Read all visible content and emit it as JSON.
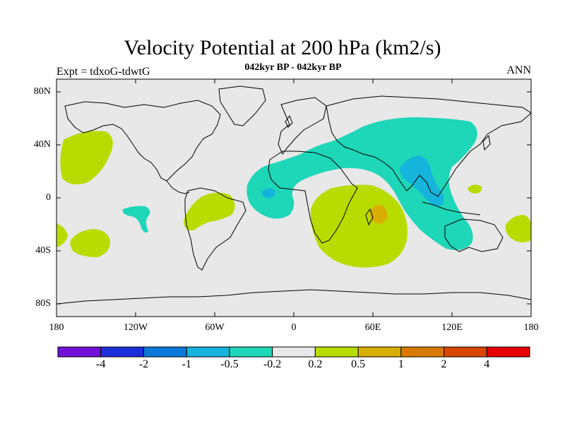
{
  "header": {
    "title": "Velocity Potential at 200 hPa (km2/s)",
    "subtitle": "042kyr BP - 042kyr BP",
    "left_label": "Expt = tdxoG-tdwtG",
    "right_label": "ANN"
  },
  "axes": {
    "lat_labels": [
      "80N",
      "40N",
      "0",
      "40S",
      "80S"
    ],
    "lon_labels": [
      "180",
      "120W",
      "60W",
      "0",
      "60E",
      "120E",
      "180"
    ]
  },
  "colorbar": {
    "colors": [
      "#7010d8",
      "#1e2ed8",
      "#0a78d8",
      "#14b4dc",
      "#1ed6b8",
      "#e8e8e8",
      "#b8dc00",
      "#d8ae00",
      "#d87a00",
      "#d84600",
      "#e60000"
    ],
    "labels": [
      "-4",
      "-2",
      "-1",
      "-0.5",
      "-0.2",
      "0.2",
      "0.5",
      "1",
      "2",
      "4"
    ]
  },
  "map": {
    "background": "#e8e8e8",
    "colors": {
      "neg_small": "#1ed6b8",
      "neg_mid": "#14b4dc",
      "pos_small": "#b8dc00",
      "pos_mid": "#d8ae00"
    }
  }
}
